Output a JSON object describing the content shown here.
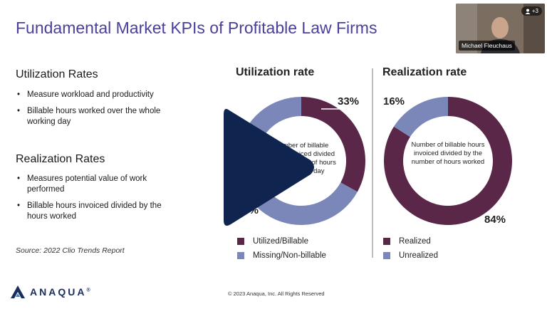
{
  "slide": {
    "title": "Fundamental Market KPIs of Profitable Law Firms",
    "utilization": {
      "heading": "Utilization Rates",
      "bullets": [
        "Measure workload and productivity",
        "Billable hours worked over the whole working day"
      ]
    },
    "realization": {
      "heading": "Realization Rates",
      "bullets": [
        "Measures potential value of work performed",
        "Billable hours invoiced divided by the hours worked"
      ]
    },
    "source": "Source: 2022 Clio Trends Report",
    "footer": "© 2023 Anaqua, Inc.  All Rights Reserved",
    "logo_text": "ANAQUA"
  },
  "chart_data": [
    {
      "type": "pie",
      "title": "Utilization rate",
      "categories": [
        "Utilized/Billable",
        "Missing/Non-billable"
      ],
      "values": [
        33,
        67
      ],
      "labels": [
        "33%",
        "67%"
      ],
      "center_label": "Number of billable hours invoiced divided by the number of hours worked per day",
      "colors": [
        "#5b2748",
        "#7b87b8"
      ],
      "legend_position": "bottom"
    },
    {
      "type": "pie",
      "title": "Realization rate",
      "categories": [
        "Realized",
        "Unrealized"
      ],
      "values": [
        84,
        16
      ],
      "labels": [
        "84%",
        "16%"
      ],
      "center_label": "Number of billable hours invoiced divided by the number of hours worked",
      "colors": [
        "#5b2748",
        "#7b87b8"
      ],
      "legend_position": "bottom"
    }
  ],
  "webcam": {
    "participant_name": "Michael Fleuchaus",
    "extra_participants": "+3"
  },
  "colors": {
    "title": "#4a3f9b",
    "primary": "#5b2748",
    "secondary": "#7b87b8",
    "play": "#0f2550"
  },
  "icons": {
    "play": "play-icon",
    "person": "person-icon",
    "logo": "anaqua-logo-icon"
  }
}
